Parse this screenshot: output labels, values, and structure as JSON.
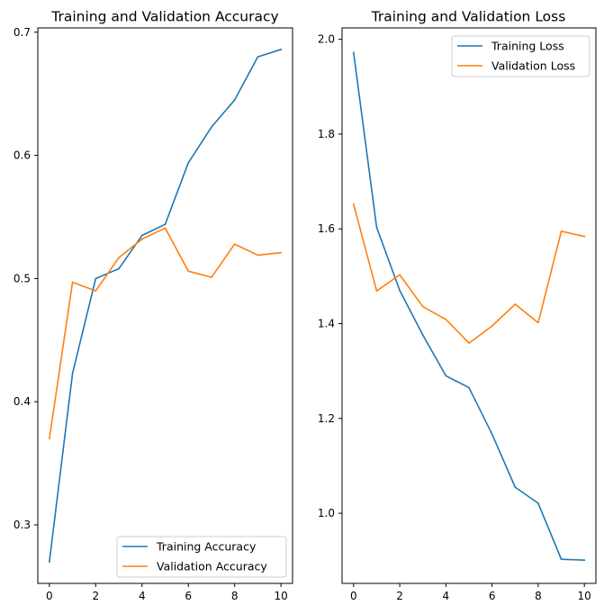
{
  "colors": {
    "training": "#1f77b4",
    "validation": "#ff7f0e",
    "axes": "#000000",
    "legend_border": "#cccccc"
  },
  "chart_data": [
    {
      "type": "line",
      "title": "Training and Validation Accuracy",
      "xlabel": "",
      "ylabel": "",
      "x": [
        0,
        1,
        2,
        3,
        4,
        5,
        6,
        7,
        8,
        9,
        10
      ],
      "series": [
        {
          "name": "Training Accuracy",
          "color": "#1f77b4",
          "values": [
            0.27,
            0.423,
            0.5,
            0.508,
            0.535,
            0.544,
            0.594,
            0.623,
            0.645,
            0.68,
            0.686
          ]
        },
        {
          "name": "Validation Accuracy",
          "color": "#ff7f0e",
          "values": [
            0.37,
            0.497,
            0.49,
            0.517,
            0.532,
            0.541,
            0.506,
            0.501,
            0.528,
            0.519,
            0.521
          ]
        }
      ],
      "xlim": [
        -0.5,
        10.5
      ],
      "ylim": [
        0.2525,
        0.7035
      ],
      "xticks": [
        0,
        2,
        4,
        6,
        8,
        10
      ],
      "xtick_labels": [
        "0",
        "2",
        "4",
        "6",
        "8",
        "10"
      ],
      "yticks": [
        0.3,
        0.4,
        0.5,
        0.6,
        0.7
      ],
      "ytick_labels": [
        "0.3",
        "0.4",
        "0.5",
        "0.6",
        "0.7"
      ],
      "grid": false,
      "legend_position": "lower right"
    },
    {
      "type": "line",
      "title": "Training and Validation Loss",
      "xlabel": "",
      "ylabel": "",
      "x": [
        0,
        1,
        2,
        3,
        4,
        5,
        6,
        7,
        8,
        9,
        10
      ],
      "series": [
        {
          "name": "Training Loss",
          "color": "#1f77b4",
          "values": [
            1.972,
            1.603,
            1.47,
            1.376,
            1.29,
            1.265,
            1.167,
            1.055,
            1.021,
            0.903,
            0.901
          ]
        },
        {
          "name": "Validation Loss",
          "color": "#ff7f0e",
          "values": [
            1.652,
            1.469,
            1.503,
            1.436,
            1.409,
            1.359,
            1.395,
            1.441,
            1.402,
            1.595,
            1.584
          ]
        }
      ],
      "xlim": [
        -0.5,
        10.5
      ],
      "ylim": [
        0.852,
        2.024
      ],
      "xticks": [
        0,
        2,
        4,
        6,
        8,
        10
      ],
      "xtick_labels": [
        "0",
        "2",
        "4",
        "6",
        "8",
        "10"
      ],
      "yticks": [
        1.0,
        1.2,
        1.4,
        1.6,
        1.8,
        2.0
      ],
      "ytick_labels": [
        "1.0",
        "1.2",
        "1.4",
        "1.6",
        "1.8",
        "2.0"
      ],
      "grid": false,
      "legend_position": "upper right"
    }
  ]
}
